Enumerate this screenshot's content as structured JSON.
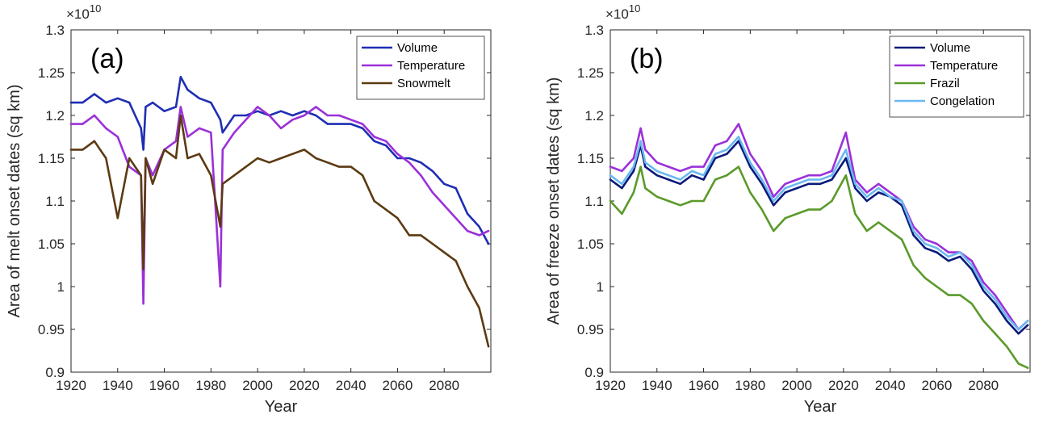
{
  "chart_data": [
    {
      "type": "line",
      "panel_label": "(a)",
      "xlabel": "Year",
      "ylabel": "Area of melt onset dates (sq km)",
      "y_multiplier": "×10",
      "y_multiplier_exp": "10",
      "xlim": [
        1920,
        2100
      ],
      "ylim": [
        0.9,
        1.3
      ],
      "xticks": [
        1920,
        1940,
        1960,
        1980,
        2000,
        2020,
        2040,
        2060,
        2080
      ],
      "yticks": [
        0.9,
        0.95,
        1,
        1.05,
        1.1,
        1.15,
        1.2,
        1.25,
        1.3
      ],
      "legend_position": "top-right",
      "grid": false,
      "x": [
        1920,
        1925,
        1930,
        1935,
        1940,
        1945,
        1950,
        1951,
        1952,
        1955,
        1960,
        1965,
        1967,
        1970,
        1975,
        1980,
        1984,
        1985,
        1990,
        1995,
        2000,
        2005,
        2010,
        2015,
        2020,
        2025,
        2030,
        2035,
        2040,
        2045,
        2050,
        2055,
        2060,
        2065,
        2070,
        2075,
        2080,
        2085,
        2090,
        2095,
        2099
      ],
      "series": [
        {
          "name": "Volume",
          "color": "#1f2eb4",
          "values": [
            1.215,
            1.215,
            1.225,
            1.215,
            1.22,
            1.215,
            1.185,
            1.16,
            1.21,
            1.215,
            1.205,
            1.21,
            1.245,
            1.23,
            1.22,
            1.215,
            1.195,
            1.18,
            1.2,
            1.2,
            1.205,
            1.2,
            1.205,
            1.2,
            1.205,
            1.2,
            1.19,
            1.19,
            1.19,
            1.185,
            1.17,
            1.165,
            1.15,
            1.15,
            1.145,
            1.135,
            1.12,
            1.115,
            1.085,
            1.07,
            1.05
          ]
        },
        {
          "name": "Temperature",
          "color": "#9b30d9",
          "values": [
            1.19,
            1.19,
            1.2,
            1.185,
            1.175,
            1.14,
            1.13,
            0.98,
            1.15,
            1.13,
            1.16,
            1.17,
            1.21,
            1.175,
            1.185,
            1.18,
            1.0,
            1.16,
            1.18,
            1.195,
            1.21,
            1.2,
            1.185,
            1.195,
            1.2,
            1.21,
            1.2,
            1.2,
            1.195,
            1.19,
            1.175,
            1.17,
            1.155,
            1.145,
            1.13,
            1.11,
            1.095,
            1.08,
            1.065,
            1.06,
            1.065
          ]
        },
        {
          "name": "Snowmelt",
          "color": "#5c3a12",
          "values": [
            1.16,
            1.16,
            1.17,
            1.15,
            1.08,
            1.15,
            1.13,
            1.02,
            1.15,
            1.12,
            1.16,
            1.15,
            1.2,
            1.15,
            1.155,
            1.13,
            1.07,
            1.12,
            1.13,
            1.14,
            1.15,
            1.145,
            1.15,
            1.155,
            1.16,
            1.15,
            1.145,
            1.14,
            1.14,
            1.13,
            1.1,
            1.09,
            1.08,
            1.06,
            1.06,
            1.05,
            1.04,
            1.03,
            1.0,
            0.975,
            0.93
          ]
        }
      ]
    },
    {
      "type": "line",
      "panel_label": "(b)",
      "xlabel": "Year",
      "ylabel": "Area of freeze onset dates (sq km)",
      "y_multiplier": "×10",
      "y_multiplier_exp": "10",
      "xlim": [
        1920,
        2100
      ],
      "ylim": [
        0.9,
        1.3
      ],
      "xticks": [
        1920,
        1940,
        1960,
        1980,
        2000,
        2020,
        2040,
        2060,
        2080
      ],
      "yticks": [
        0.9,
        0.95,
        1,
        1.05,
        1.1,
        1.15,
        1.2,
        1.25,
        1.3
      ],
      "legend_position": "top-right",
      "grid": false,
      "x": [
        1920,
        1925,
        1930,
        1933,
        1935,
        1940,
        1945,
        1950,
        1955,
        1960,
        1965,
        1970,
        1975,
        1980,
        1985,
        1990,
        1995,
        2000,
        2005,
        2010,
        2015,
        2021,
        2025,
        2030,
        2035,
        2040,
        2045,
        2050,
        2055,
        2060,
        2065,
        2070,
        2075,
        2080,
        2085,
        2090,
        2095,
        2099
      ],
      "series": [
        {
          "name": "Volume",
          "color": "#0a1a7a",
          "values": [
            1.125,
            1.115,
            1.135,
            1.165,
            1.14,
            1.13,
            1.125,
            1.12,
            1.13,
            1.125,
            1.15,
            1.155,
            1.17,
            1.14,
            1.12,
            1.095,
            1.11,
            1.115,
            1.12,
            1.12,
            1.125,
            1.15,
            1.115,
            1.1,
            1.11,
            1.105,
            1.095,
            1.06,
            1.045,
            1.04,
            1.03,
            1.035,
            1.02,
            0.995,
            0.98,
            0.96,
            0.945,
            0.955
          ]
        },
        {
          "name": "Temperature",
          "color": "#9b30d9",
          "values": [
            1.14,
            1.135,
            1.15,
            1.185,
            1.16,
            1.145,
            1.14,
            1.135,
            1.14,
            1.14,
            1.165,
            1.17,
            1.19,
            1.155,
            1.135,
            1.105,
            1.12,
            1.125,
            1.13,
            1.13,
            1.135,
            1.18,
            1.125,
            1.11,
            1.12,
            1.11,
            1.1,
            1.07,
            1.055,
            1.05,
            1.04,
            1.04,
            1.03,
            1.005,
            0.99,
            0.97,
            0.95,
            0.96
          ]
        },
        {
          "name": "Frazil",
          "color": "#5a9a2a",
          "values": [
            1.1,
            1.085,
            1.11,
            1.14,
            1.115,
            1.105,
            1.1,
            1.095,
            1.1,
            1.1,
            1.125,
            1.13,
            1.14,
            1.11,
            1.09,
            1.065,
            1.08,
            1.085,
            1.09,
            1.09,
            1.1,
            1.13,
            1.085,
            1.065,
            1.075,
            1.065,
            1.055,
            1.025,
            1.01,
            1.0,
            0.99,
            0.99,
            0.98,
            0.96,
            0.945,
            0.93,
            0.91,
            0.905
          ]
        },
        {
          "name": "Congelation",
          "color": "#6ab8f0",
          "values": [
            1.13,
            1.12,
            1.14,
            1.17,
            1.145,
            1.135,
            1.13,
            1.125,
            1.135,
            1.13,
            1.155,
            1.16,
            1.175,
            1.145,
            1.125,
            1.1,
            1.115,
            1.12,
            1.125,
            1.125,
            1.13,
            1.16,
            1.12,
            1.105,
            1.115,
            1.105,
            1.1,
            1.065,
            1.05,
            1.045,
            1.035,
            1.04,
            1.025,
            1.0,
            0.985,
            0.965,
            0.95,
            0.96
          ]
        }
      ]
    }
  ]
}
